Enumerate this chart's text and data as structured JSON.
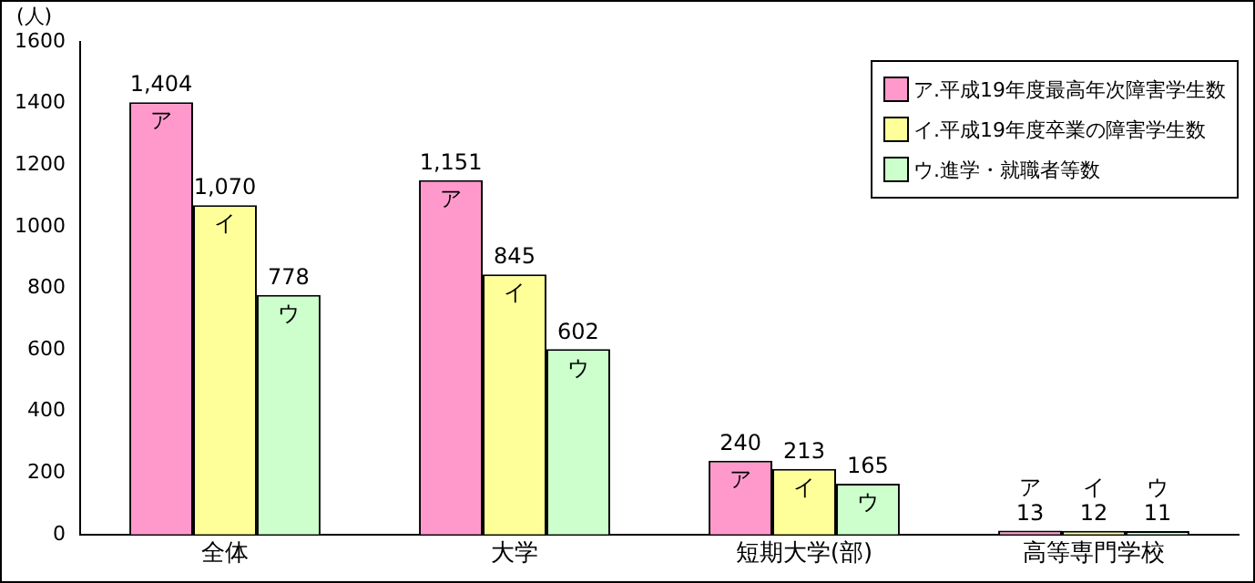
{
  "chart_data": {
    "type": "bar",
    "ylabel": "(人)",
    "categories": [
      "全体",
      "大学",
      "短期大学(部)",
      "高等専門学校"
    ],
    "series": [
      {
        "name": "ア.平成19年度最高年次障害学生数",
        "color": "#ff99cc",
        "values": [
          1404,
          1151,
          240,
          13
        ],
        "value_labels": [
          "1,404",
          "1,151",
          "240",
          "13"
        ]
      },
      {
        "name": "イ.平成19年度卒業の障害学生数",
        "color": "#ffff99",
        "values": [
          1070,
          845,
          213,
          12
        ],
        "value_labels": [
          "1,070",
          "845",
          "213",
          "12"
        ]
      },
      {
        "name": "ウ.進学・就職者等数",
        "color": "#ccffcc",
        "values": [
          778,
          602,
          165,
          11
        ],
        "value_labels": [
          "778",
          "602",
          "165",
          "11"
        ]
      }
    ],
    "annotations": [
      "ア",
      "イ",
      "ウ",
      "ア",
      "イ",
      "ウ",
      "ア",
      "イ",
      "ウ",
      "ア",
      "イ",
      "ウ"
    ],
    "ylim": [
      0,
      1600
    ],
    "yticks": [
      0,
      200,
      400,
      600,
      800,
      1000,
      1200,
      1400,
      1600
    ],
    "grid": false,
    "legend": "top right"
  }
}
